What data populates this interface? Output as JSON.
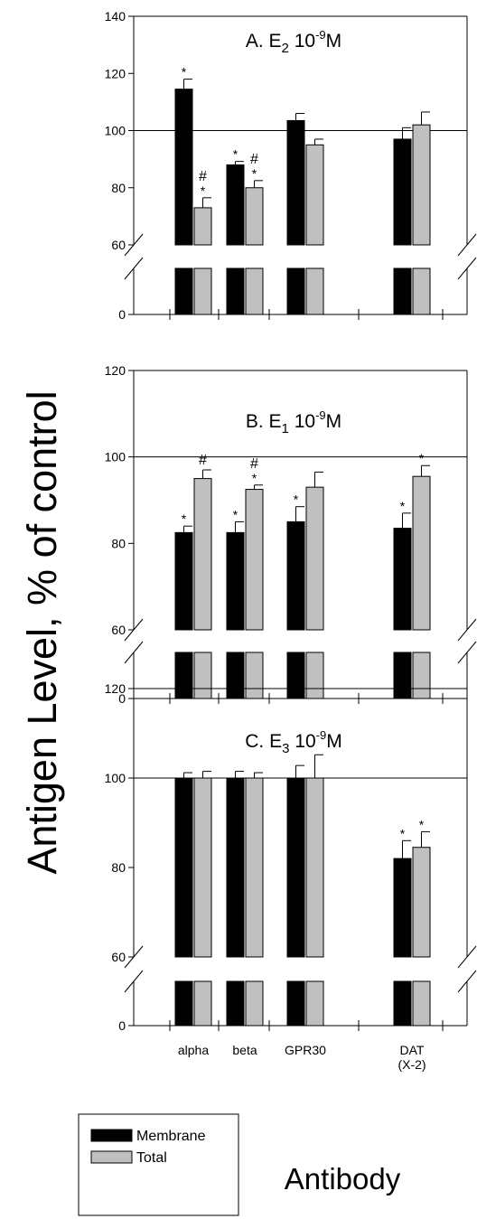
{
  "figure": {
    "ylabel": "Antigen Level, % of control",
    "xlabel": "Antibody",
    "categories": [
      {
        "lines": [
          "alpha"
        ]
      },
      {
        "lines": [
          "beta"
        ]
      },
      {
        "lines": [
          "GPR30"
        ]
      },
      {
        "lines": [
          "DAT",
          "(X-2)"
        ]
      }
    ],
    "legend": {
      "entries": [
        {
          "label": "Membrane",
          "color": "#000000"
        },
        {
          "label": "Total",
          "color": "#c0c0c0"
        }
      ]
    }
  },
  "chart_data": [
    {
      "type": "bar",
      "title": "A. E2 10-9M",
      "title_parts": {
        "prefix": "A. E",
        "sub": "2",
        "mid": " 10",
        "sup": "-9",
        "suffix": "M"
      },
      "categories": [
        "alpha",
        "beta",
        "GPR30",
        "DAT (X-2)"
      ],
      "ylim": [
        0,
        140
      ],
      "axis_break": [
        20,
        60
      ],
      "yticks": [
        0,
        60,
        80,
        100,
        120,
        140
      ],
      "reference_line": 100,
      "series": [
        {
          "name": "Membrane",
          "color": "#000000",
          "values": [
            114.5,
            88,
            103.5,
            97
          ],
          "errors": [
            3.5,
            1.2,
            2.5,
            4
          ],
          "marks": [
            [
              "*"
            ],
            [
              "*"
            ],
            [],
            []
          ]
        },
        {
          "name": "Total",
          "color": "#c0c0c0",
          "values": [
            73,
            80,
            95,
            102
          ],
          "errors": [
            3.5,
            2.5,
            2,
            4.5
          ],
          "marks": [
            [
              "*",
              "#"
            ],
            [
              "*",
              "#"
            ],
            [],
            []
          ]
        }
      ]
    },
    {
      "type": "bar",
      "title": "B. E1 10-9M",
      "title_parts": {
        "prefix": "B. E",
        "sub": "1",
        "mid": " 10",
        "sup": "-9",
        "suffix": "M"
      },
      "categories": [
        "alpha",
        "beta",
        "GPR30",
        "DAT (X-2)"
      ],
      "ylim": [
        0,
        120
      ],
      "axis_break": [
        20,
        60
      ],
      "yticks": [
        0,
        60,
        80,
        100,
        120
      ],
      "reference_line": 100,
      "series": [
        {
          "name": "Membrane",
          "color": "#000000",
          "values": [
            82.5,
            82.5,
            85,
            83.5
          ],
          "errors": [
            1.5,
            2.5,
            3.5,
            3.5
          ],
          "marks": [
            [
              "*"
            ],
            [
              "*"
            ],
            [
              "*"
            ],
            [
              "*"
            ]
          ]
        },
        {
          "name": "Total",
          "color": "#c0c0c0",
          "values": [
            95,
            92.5,
            93,
            95.5
          ],
          "errors": [
            2,
            1,
            3.5,
            2.5
          ],
          "marks": [
            [
              "#"
            ],
            [
              "*",
              "#"
            ],
            [],
            [
              "*"
            ]
          ]
        }
      ]
    },
    {
      "type": "bar",
      "title": "C. E3 10-9M",
      "title_parts": {
        "prefix": "C. E",
        "sub": "3",
        "mid": " 10",
        "sup": "-9",
        "suffix": "M"
      },
      "categories": [
        "alpha",
        "beta",
        "GPR30",
        "DAT (X-2)"
      ],
      "ylim": [
        0,
        120
      ],
      "axis_break": [
        20,
        60
      ],
      "yticks": [
        0,
        60,
        80,
        100,
        120
      ],
      "reference_line": 100,
      "series": [
        {
          "name": "Membrane",
          "color": "#000000",
          "values": [
            100,
            100,
            100,
            82
          ],
          "errors": [
            1.2,
            1.5,
            2.8,
            4
          ],
          "marks": [
            [],
            [],
            [],
            [
              "*"
            ]
          ]
        },
        {
          "name": "Total",
          "color": "#c0c0c0",
          "values": [
            100,
            100,
            100,
            84.5
          ],
          "errors": [
            1.5,
            1.2,
            5.2,
            3.5
          ],
          "marks": [
            [],
            [],
            [],
            [
              "*"
            ]
          ]
        }
      ]
    }
  ]
}
